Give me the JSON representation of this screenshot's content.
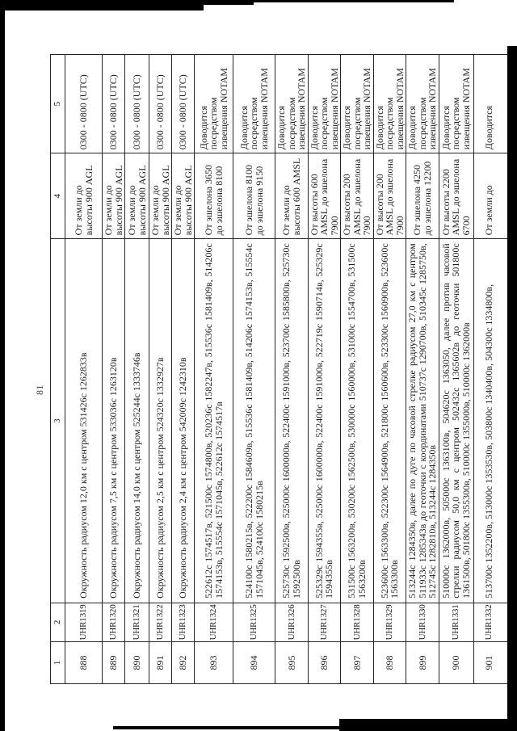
{
  "page": {
    "number": "81"
  },
  "table": {
    "headers": [
      "1",
      "2",
      "3",
      "4",
      "5"
    ],
    "rows": [
      {
        "num": "888",
        "code": "UHR1319",
        "desc": "Окружность радиусом 12,0 км с центром 531426с 1262833в",
        "alt": "От земли до высоты 900 AGL",
        "time": "0300 - 0800 (UTC)"
      },
      {
        "num": "889",
        "code": "UHR1320",
        "desc": "Окружность радиусом 7,5 км с центром 533036с 1263120в",
        "alt": "От земли до высоты 900 AGL",
        "time": "0300 - 0800 (UTC)"
      },
      {
        "num": "890",
        "code": "UHR1321",
        "desc": "Окружность радиусом 14,0 км с центром 525244с 1333746в",
        "alt": "От земли до высоты 900 AGL",
        "time": "0300 - 0800 (UTC)"
      },
      {
        "num": "891",
        "code": "UHR1322",
        "desc": "Окружность радиусом 2,5 км с центром 524320с 1332927в",
        "alt": "От земли до высоты 900 AGL",
        "time": "0300 - 0800 (UTC)"
      },
      {
        "num": "892",
        "code": "UHR1323",
        "desc": "Окружность радиусом 2,4 км с центром 542009с 1242310в",
        "alt": "От земли до высоты 900 AGL",
        "time": "0300 - 0800 (UTC)"
      },
      {
        "num": "893",
        "code": "UHR1324",
        "desc": "522612с 1574517в, 521500с 1574800в, 520236с 1582247в, 515536с 1581409в, 514206с 1574153в, 515554с 1571045в, 522612с 1574517в",
        "alt": "От эшелона 3650 до эшелона 8100",
        "time": "Доводится посредством извещения NOTAM"
      },
      {
        "num": "894",
        "code": "UHR1325",
        "desc": "524100с 1580215в, 522200с 1584609в, 515536с 1581409в, 514206с 1574153в, 515554с 1571045в, 524100с 1580215в",
        "alt": "От эшелона 8100 до эшелона 9150",
        "time": "Доводится посредством извещения NOTAM"
      },
      {
        "num": "895",
        "code": "UHR1326",
        "desc": "525730с 1592500в, 525000с 1600000в, 522400с 1591000в, 523700с 1585800в, 525730с 1592500в",
        "alt": "От земли до высоты 600 AMSL",
        "time": "Доводится посредством извещения NOTAM"
      },
      {
        "num": "896",
        "code": "UHR1327",
        "desc": "525329с 1594355в, 525000с 1600000в, 522400с 1591000в, 522719с 1590714в, 525329с 1594355в",
        "alt": "От высоты 600 AMSL до эшелона 7900",
        "time": "Доводится посредством извещения NOTAM"
      },
      {
        "num": "897",
        "code": "UHR1328",
        "desc": "531500с 1563200в, 530200с 1562500в, 530000с 1560000в, 531000с 1554700в, 531500с 1563200в",
        "alt": "От высоты 200 AMSL до эшелона 7900",
        "time": "Доводится посредством извещения NOTAM"
      },
      {
        "num": "898",
        "code": "UHR1329",
        "desc": "523600с 1563300в, 522300с 1564900в, 521800с 1560600в, 523300с 1560900в, 523600с 1563300в",
        "alt": "От высоты 200 AMSL до эшелона 7900",
        "time": "Доводится посредством извещения NOTAM"
      },
      {
        "num": "899",
        "code": "UHR1330",
        "desc": "513244с 1284350в, далее по дуге по часовой стрелке радиусом 27,0 км с центром 511933с 1285343в до геоточки с координатами 510737с 1290700в, 510345с 1285750в, 512745с 1282810в, 513244с 1284350в",
        "alt": "От эшелона 4250 до эшелона 12200",
        "time": "Доводится посредством извещения NOTAM"
      },
      {
        "num": "900",
        "code": "UHR1331",
        "desc": "510000с 1362000в, 505000с 1363100в, 504620с 1363050, далее против часовой стрелки радиусом 50,0 км с центром 502432с 1365602в до геоточки 501800с 1361500в, 501800с 1355300в, 510000с 1355000в, 510000с 1362000в",
        "alt": "От высоты 2200 AMSL до эшелона 6700",
        "time": "Доводится посредством извещения NOTAM"
      },
      {
        "num": "901",
        "code": "UHR1332",
        "desc": "513700с 1352200в, 513000с 1353530в, 503800с 1340400в, 504300с 1334800в,",
        "alt": "От земли до",
        "time": "Доводится"
      }
    ]
  }
}
